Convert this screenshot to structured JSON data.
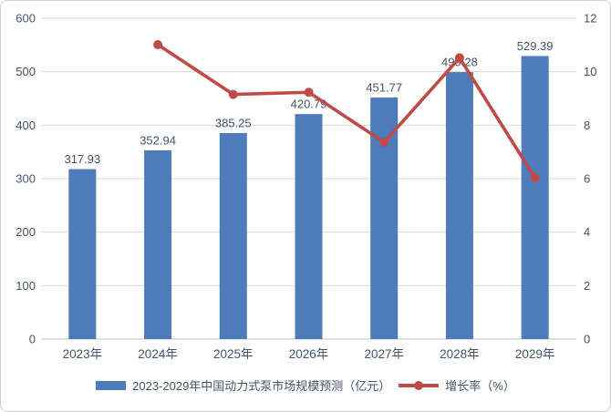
{
  "chart_data": {
    "type": "combo",
    "title": "",
    "categories": [
      "2023年",
      "2024年",
      "2025年",
      "2026年",
      "2027年",
      "2028年",
      "2029年"
    ],
    "series": [
      {
        "name": "2023-2029年中国动力式泵市场规模预测（亿元）",
        "type": "bar",
        "axis": "left",
        "values": [
          317.93,
          352.94,
          385.25,
          420.79,
          451.77,
          499.28,
          529.39
        ],
        "data_labels": [
          "317.93",
          "352.94",
          "385.25",
          "420.79",
          "451.77",
          "499.28",
          "529.39"
        ]
      },
      {
        "name": "增长率（%）",
        "type": "line",
        "axis": "right",
        "values": [
          null,
          11.01,
          9.15,
          9.23,
          7.36,
          10.52,
          6.03
        ]
      }
    ],
    "left_axis": {
      "min": 0,
      "max": 600,
      "step": 100,
      "ticks": [
        "0",
        "100",
        "200",
        "300",
        "400",
        "500",
        "600"
      ]
    },
    "right_axis": {
      "min": 0,
      "max": 12,
      "step": 2,
      "ticks": [
        "0",
        "2",
        "4",
        "6",
        "8",
        "10",
        "12"
      ]
    },
    "grid": true,
    "legend_position": "bottom"
  },
  "colors": {
    "bar": "#4E7CBA",
    "line": "#BF4B47",
    "text": "#44546A",
    "data_label": "#44546A",
    "gridline": "#D9D9D9",
    "axis_line": "#C3C3C3",
    "frame_border": "#CFCFCF",
    "background": "#FFFFFF"
  }
}
